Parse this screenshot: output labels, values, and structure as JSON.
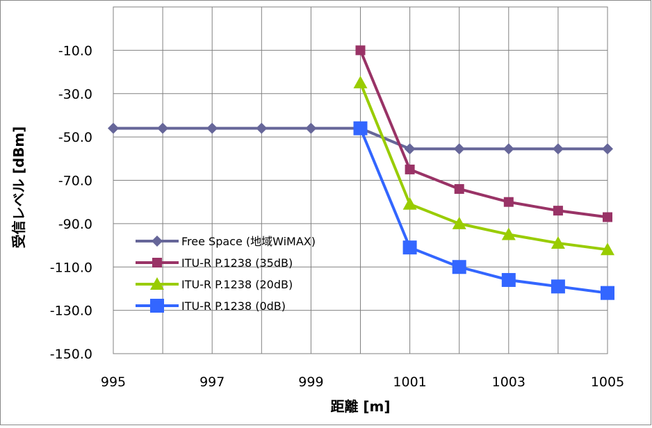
{
  "chart_data": {
    "type": "line",
    "xlabel": "距離 [m]",
    "ylabel": "受信レベル [dBm]",
    "xlim": [
      995,
      1005
    ],
    "ylim": [
      -150,
      10
    ],
    "x_ticks": [
      "995",
      "997",
      "999",
      "1001",
      "1003",
      "1005"
    ],
    "y_ticks": [
      "-10.0",
      "-30.0",
      "-50.0",
      "-70.0",
      "-90.0",
      "-110.0",
      "-130.0",
      "-150.0"
    ],
    "grid": true,
    "legend_position": "lower-left",
    "series": [
      {
        "name": "Free Space (地域WiMAX)",
        "color": "#666699",
        "marker": "diamond",
        "x": [
          995,
          996,
          997,
          998,
          999,
          1000,
          1001,
          1002,
          1003,
          1004,
          1005
        ],
        "y": [
          -46,
          -46,
          -46,
          -46,
          -46,
          -46,
          -55.5,
          -55.5,
          -55.5,
          -55.5,
          -55.5
        ]
      },
      {
        "name": "ITU-R P.1238 (35dB)",
        "color": "#993366",
        "marker": "square",
        "x": [
          1000,
          1001,
          1002,
          1003,
          1004,
          1005
        ],
        "y": [
          -10,
          -65,
          -74,
          -80,
          -84,
          -87
        ]
      },
      {
        "name": "ITU-R P.1238 (20dB)",
        "color": "#99CC00",
        "marker": "triangle",
        "x": [
          1000,
          1001,
          1002,
          1003,
          1004,
          1005
        ],
        "y": [
          -25,
          -81,
          -90,
          -95,
          -99,
          -102
        ]
      },
      {
        "name": "ITU-R P.1238 (0dB)",
        "color": "#3366FF",
        "marker": "square",
        "x": [
          1000,
          1001,
          1002,
          1003,
          1004,
          1005
        ],
        "y": [
          -46,
          -101,
          -110,
          -116,
          -119,
          -122
        ]
      }
    ]
  }
}
